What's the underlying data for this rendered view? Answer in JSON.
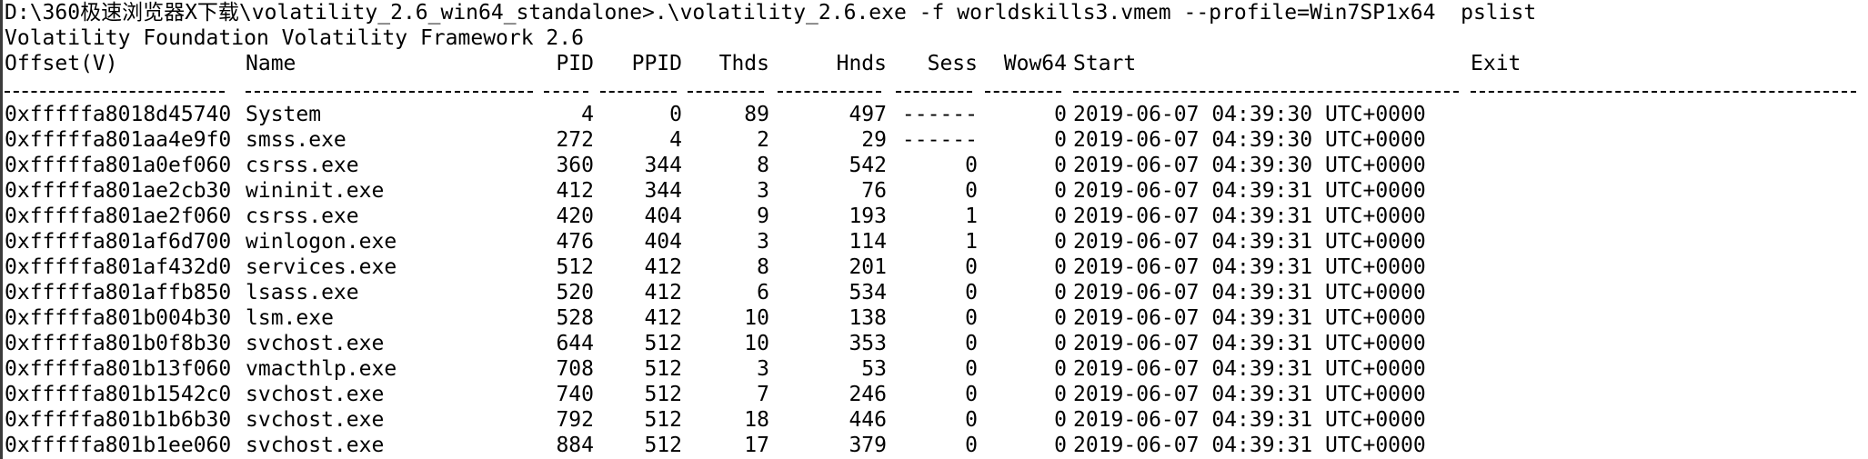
{
  "console": {
    "command": "D:\\360极速浏览器X下载\\volatility_2.6_win64_standalone>.\\volatility_2.6.exe -f worldskills3.vmem --profile=Win7SP1x64  pslist",
    "banner": "Volatility Foundation Volatility Framework 2.6",
    "headers": [
      "Offset(V)",
      "Name",
      "PID",
      "PPID",
      "Thds",
      "Hnds",
      "Sess",
      "Wow64",
      "Start",
      "Exit"
    ],
    "rows": [
      [
        "0xfffffa8018d45740",
        "System",
        "4",
        "0",
        "89",
        "497",
        "------",
        "0",
        "2019-06-07 04:39:30 UTC+0000",
        ""
      ],
      [
        "0xfffffa801aa4e9f0",
        "smss.exe",
        "272",
        "4",
        "2",
        "29",
        "------",
        "0",
        "2019-06-07 04:39:30 UTC+0000",
        ""
      ],
      [
        "0xfffffa801a0ef060",
        "csrss.exe",
        "360",
        "344",
        "8",
        "542",
        "0",
        "0",
        "2019-06-07 04:39:30 UTC+0000",
        ""
      ],
      [
        "0xfffffa801ae2cb30",
        "wininit.exe",
        "412",
        "344",
        "3",
        "76",
        "0",
        "0",
        "2019-06-07 04:39:31 UTC+0000",
        ""
      ],
      [
        "0xfffffa801ae2f060",
        "csrss.exe",
        "420",
        "404",
        "9",
        "193",
        "1",
        "0",
        "2019-06-07 04:39:31 UTC+0000",
        ""
      ],
      [
        "0xfffffa801af6d700",
        "winlogon.exe",
        "476",
        "404",
        "3",
        "114",
        "1",
        "0",
        "2019-06-07 04:39:31 UTC+0000",
        ""
      ],
      [
        "0xfffffa801af432d0",
        "services.exe",
        "512",
        "412",
        "8",
        "201",
        "0",
        "0",
        "2019-06-07 04:39:31 UTC+0000",
        ""
      ],
      [
        "0xfffffa801affb850",
        "lsass.exe",
        "520",
        "412",
        "6",
        "534",
        "0",
        "0",
        "2019-06-07 04:39:31 UTC+0000",
        ""
      ],
      [
        "0xfffffa801b004b30",
        "lsm.exe",
        "528",
        "412",
        "10",
        "138",
        "0",
        "0",
        "2019-06-07 04:39:31 UTC+0000",
        ""
      ],
      [
        "0xfffffa801b0f8b30",
        "svchost.exe",
        "644",
        "512",
        "10",
        "353",
        "0",
        "0",
        "2019-06-07 04:39:31 UTC+0000",
        ""
      ],
      [
        "0xfffffa801b13f060",
        "vmacthlp.exe",
        "708",
        "512",
        "3",
        "53",
        "0",
        "0",
        "2019-06-07 04:39:31 UTC+0000",
        ""
      ],
      [
        "0xfffffa801b1542c0",
        "svchost.exe",
        "740",
        "512",
        "7",
        "246",
        "0",
        "0",
        "2019-06-07 04:39:31 UTC+0000",
        ""
      ],
      [
        "0xfffffa801b1b6b30",
        "svchost.exe",
        "792",
        "512",
        "18",
        "446",
        "0",
        "0",
        "2019-06-07 04:39:31 UTC+0000",
        ""
      ],
      [
        "0xfffffa801b1ee060",
        "svchost.exe",
        "884",
        "512",
        "17",
        "379",
        "0",
        "0",
        "2019-06-07 04:39:31 UTC+0000",
        ""
      ]
    ]
  }
}
